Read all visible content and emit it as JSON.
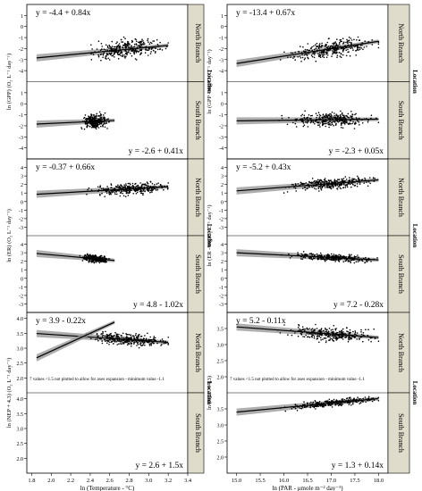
{
  "chart_data": [
    {
      "type": "scatter",
      "xlabel": "ln (Temperature - °C)",
      "x_ticks": [
        "1.8",
        "2.0",
        "2.2",
        "2.4",
        "2.6",
        "2.8",
        "3.0",
        "3.2",
        "3.4"
      ],
      "xlim": [
        1.75,
        3.4
      ],
      "panels": [
        {
          "ylabel": "ln (GPP) (O₂ L⁻¹ day⁻¹)",
          "ylim": [
            -5,
            2
          ],
          "y_ticks": [
            "1",
            "0",
            "-1",
            "-2",
            "-3",
            "-4",
            "-5"
          ],
          "series": [
            {
              "name": "North Branch",
              "equation": "y = -4.4 + 0.84x",
              "intercept": -4.4,
              "slope": 0.84,
              "x_range": [
                1.85,
                3.2
              ],
              "x_center": 2.8,
              "x_spread": 0.3,
              "noise": 0.8,
              "n": 320
            },
            {
              "name": "South Branch",
              "equation": "y = -2.6 + 0.41x",
              "intercept": -2.6,
              "slope": 0.41,
              "x_range": [
                1.85,
                2.65
              ],
              "x_center": 2.45,
              "x_spread": 0.1,
              "noise": 0.6,
              "n": 300
            }
          ]
        },
        {
          "ylabel": "ln (ER) (O₂ L⁻¹ day⁻¹)",
          "ylim": [
            -4,
            5
          ],
          "y_ticks": [
            "4",
            "3",
            "2",
            "1",
            "0",
            "-1",
            "-2",
            "-3"
          ],
          "series": [
            {
              "name": "North Branch",
              "equation": "y = -0.37 + 0.66x",
              "intercept": -0.37,
              "slope": 0.66,
              "x_range": [
                1.85,
                3.2
              ],
              "x_center": 2.8,
              "x_spread": 0.3,
              "noise": 0.6,
              "n": 320
            },
            {
              "name": "South Branch",
              "equation": "y = 4.8 - 1.02x",
              "intercept": 4.8,
              "slope": -1.02,
              "x_range": [
                1.85,
                2.65
              ],
              "x_center": 2.45,
              "x_spread": 0.1,
              "noise": 0.4,
              "n": 300
            }
          ]
        },
        {
          "ylabel": "ln (NEP + 4.3) (O₂ L⁻¹ day⁻¹)",
          "ylim": [
            1.5,
            4.2
          ],
          "y_ticks": [
            "4.0",
            "3.5",
            "3.0",
            "2.5",
            "2.0",
            "1.5"
          ],
          "note": "7 values <1.5 not plotted to allow for axes expansion - minimum value -1.1",
          "series": [
            {
              "name": "North Branch",
              "equation": "y = 3.9 - 0.22x",
              "intercept": 3.9,
              "slope": -0.22,
              "x_range": [
                1.85,
                3.2
              ],
              "x_center": 2.8,
              "x_spread": 0.3,
              "noise": 0.2,
              "n": 320
            },
            {
              "name": "South Branch",
              "equation": "y = 2.6 + 1.5x",
              "intercept": 2.6,
              "slope": 1.5,
              "x_range": [
                1.85,
                2.65
              ],
              "x_center": 2.45,
              "x_spread": 0.1,
              "noise": 0.1,
              "n": 300
            }
          ]
        }
      ]
    },
    {
      "type": "scatter",
      "xlabel": "ln (PAR - μmole m⁻² day⁻¹)",
      "x_ticks": [
        "15.0",
        "15.5",
        "16.0",
        "16.5",
        "17.0",
        "17.5",
        "18.0"
      ],
      "xlim": [
        14.8,
        18.2
      ],
      "panels": [
        {
          "ylabel": "ln (GPP - mg O₂ L⁻¹ day⁻¹)",
          "ylim": [
            -5,
            2
          ],
          "y_ticks": [
            "1",
            "0",
            "-1",
            "-2",
            "-3",
            "-4",
            "-5"
          ],
          "series": [
            {
              "name": "North Branch",
              "equation": "y = -13.4 + 0.67x",
              "intercept": -13.4,
              "slope": 0.67,
              "x_range": [
                15.0,
                18.0
              ],
              "x_center": 17.0,
              "x_spread": 0.65,
              "noise": 0.8,
              "n": 320
            },
            {
              "name": "South Branch",
              "equation": "y = -2.3 + 0.05x",
              "intercept": -2.3,
              "slope": 0.05,
              "x_range": [
                15.0,
                18.0
              ],
              "x_center": 17.0,
              "x_spread": 0.65,
              "noise": 0.6,
              "n": 320
            }
          ]
        },
        {
          "ylabel": "ln (ER - mg O₂ L⁻¹ day⁻¹)",
          "ylim": [
            -4,
            5
          ],
          "y_ticks": [
            "4",
            "3",
            "2",
            "1",
            "0",
            "-1",
            "-2",
            "-3"
          ],
          "series": [
            {
              "name": "North Branch",
              "equation": "y = -5.2 + 0.43x",
              "intercept": -5.2,
              "slope": 0.43,
              "x_range": [
                15.0,
                18.0
              ],
              "x_center": 17.0,
              "x_spread": 0.65,
              "noise": 0.6,
              "n": 320
            },
            {
              "name": "South Branch",
              "equation": "y = 7.2 - 0.28x",
              "intercept": 7.2,
              "slope": -0.28,
              "x_range": [
                15.0,
                18.0
              ],
              "x_center": 17.0,
              "x_spread": 0.65,
              "noise": 0.4,
              "n": 320
            }
          ]
        },
        {
          "ylabel": "ln (NEP + 4.3)",
          "ylim": [
            1.5,
            4.0
          ],
          "y_ticks": [
            "3.5",
            "3.0",
            "2.5",
            "2.0",
            "1.5"
          ],
          "note": "7 values <1.5 not plotted to allow for axes expansion - minimum value -1.1",
          "series": [
            {
              "name": "North Branch",
              "equation": "y = 5.2 - 0.11x",
              "intercept": 5.2,
              "slope": -0.11,
              "x_range": [
                15.0,
                18.0
              ],
              "x_center": 17.0,
              "x_spread": 0.65,
              "noise": 0.2,
              "n": 320
            },
            {
              "name": "South Branch",
              "equation": "y = 1.3 + 0.14x",
              "intercept": 1.3,
              "slope": 0.14,
              "x_range": [
                15.0,
                18.0
              ],
              "x_center": 17.0,
              "x_spread": 0.65,
              "noise": 0.1,
              "n": 320
            }
          ]
        }
      ]
    }
  ],
  "strip": {
    "location_label": "Location",
    "north_label": "North Branch",
    "south_label": "South Branch"
  },
  "colors": {
    "strip_bg": "#e0dccb",
    "band": "#9a9a9a",
    "points": "#000000"
  }
}
